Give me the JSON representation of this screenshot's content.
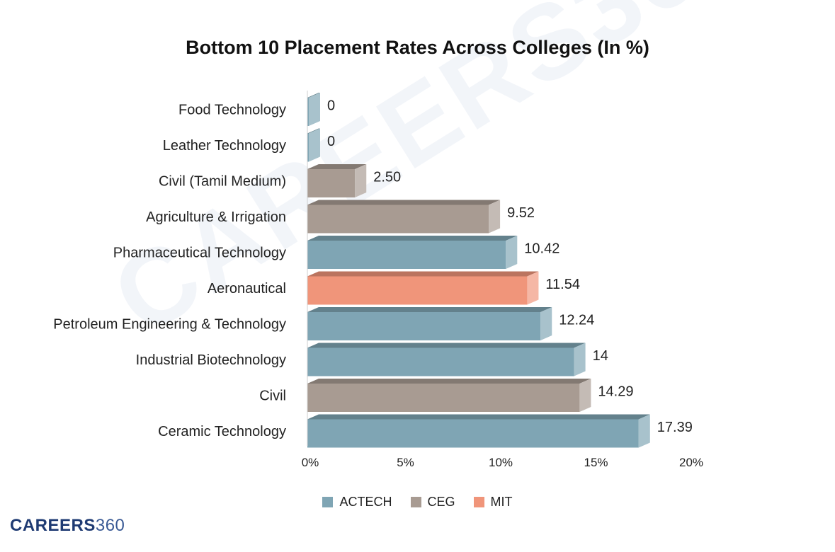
{
  "chart_data": {
    "type": "bar",
    "orientation": "horizontal",
    "title": "Bottom 10 Placement Rates Across Colleges (In %)",
    "xlabel": "",
    "ylabel": "",
    "xlim": [
      0,
      20
    ],
    "x_ticks": [
      0,
      5,
      10,
      15,
      20
    ],
    "x_tick_labels": [
      "0%",
      "5%",
      "10%",
      "15%",
      "20%"
    ],
    "grid": false,
    "legend_position": "bottom",
    "categories": [
      "Food Technology",
      "Leather Technology",
      "Civil (Tamil Medium)",
      "Agriculture & Irrigation",
      "Pharmaceutical Technology",
      "Aeronautical",
      "Petroleum Engineering & Technology",
      "Industrial Biotechnology",
      "Civil",
      "Ceramic Technology"
    ],
    "values": [
      0,
      0,
      2.5,
      9.52,
      10.42,
      11.54,
      12.24,
      14,
      14.29,
      17.39
    ],
    "value_labels": [
      "0",
      "0",
      "2.50",
      "9.52",
      "10.42",
      "11.54",
      "12.24",
      "14",
      "14.29",
      "17.39"
    ],
    "groups": [
      "ACTECH",
      "ACTECH",
      "CEG",
      "CEG",
      "ACTECH",
      "MIT",
      "ACTECH",
      "ACTECH",
      "CEG",
      "ACTECH"
    ],
    "legend": [
      {
        "name": "ACTECH",
        "color": "#7fa5b4"
      },
      {
        "name": "CEG",
        "color": "#a89b92"
      },
      {
        "name": "MIT",
        "color": "#f0957a"
      }
    ]
  },
  "brand": {
    "part1": "CAREERS",
    "part2": "360"
  },
  "watermark": "CAREERS360"
}
